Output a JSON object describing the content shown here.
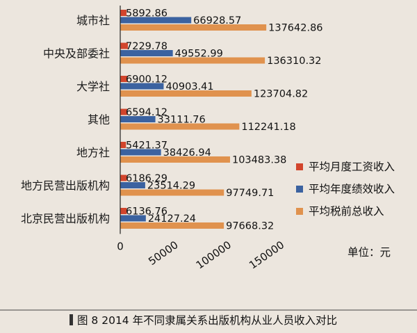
{
  "chart_data": {
    "type": "bar",
    "orientation": "horizontal",
    "categories": [
      "城市社",
      "中央及部委社",
      "大学社",
      "其他",
      "地方社",
      "地方民营出版机构",
      "北京民营出版机构"
    ],
    "series": [
      {
        "name": "平均月度工资收入",
        "color": "#d2452c",
        "values": [
          5892.86,
          7229.78,
          6900.12,
          6594.12,
          5421.37,
          6186.29,
          6136.76
        ]
      },
      {
        "name": "平均年度绩效收入",
        "color": "#3b62a0",
        "values": [
          66928.57,
          49552.99,
          40903.41,
          33111.76,
          38426.94,
          23514.29,
          24127.24
        ]
      },
      {
        "name": "平均税前总收入",
        "color": "#e0924e",
        "values": [
          137642.86,
          136310.32,
          123704.82,
          112241.18,
          103483.38,
          97749.71,
          97668.32
        ]
      }
    ],
    "value_labels": [
      [
        "5892.86",
        "66928.57",
        "137642.86"
      ],
      [
        "7229.78",
        "49552.99",
        "136310.32"
      ],
      [
        "6900.12",
        "40903.41",
        "123704.82"
      ],
      [
        "6594.12",
        "33111.76",
        "112241.18"
      ],
      [
        "5421.37",
        "38426.94",
        "103483.38"
      ],
      [
        "6186.29",
        "23514.29",
        "97749.71"
      ],
      [
        "6136.76",
        "24127.24",
        "97668.32"
      ]
    ],
    "x_ticks": [
      0,
      50000,
      100000,
      150000
    ],
    "x_tick_labels": [
      "0",
      "50000",
      "100000",
      "150000"
    ],
    "xlim": [
      0,
      150000
    ],
    "legend_position": "right",
    "grid": false
  },
  "unit_label": "单位：元",
  "caption": "图 8 2014 年不同隶属关系出版机构从业人员收入对比"
}
